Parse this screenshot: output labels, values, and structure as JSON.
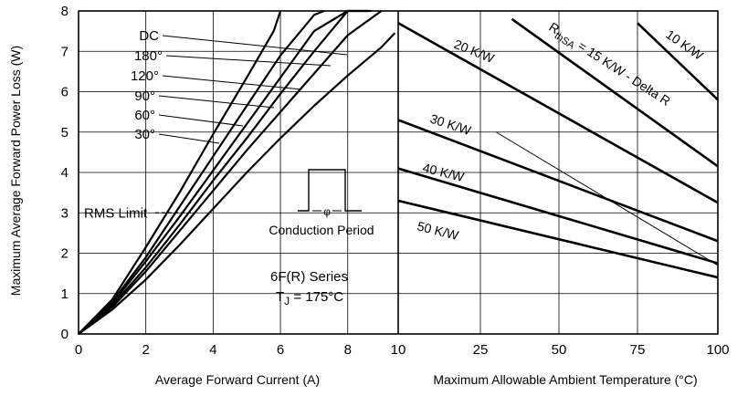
{
  "chart_data": [
    {
      "type": "line",
      "xlabel": "Average Forward Current (A)",
      "ylabel": "Maximum Average Forward Power Loss (W)",
      "xlim": [
        0,
        9.5
      ],
      "ylim": [
        0,
        8
      ],
      "xticks": [
        "0",
        "2",
        "4",
        "6",
        "8"
      ],
      "yticks": [
        "0",
        "1",
        "2",
        "3",
        "4",
        "5",
        "6",
        "7",
        "8"
      ],
      "grid": true,
      "series": [
        {
          "name": "DC",
          "x": [
            0,
            1,
            2,
            3,
            4,
            5,
            6,
            7,
            8,
            9,
            9.4
          ],
          "y": [
            0,
            0.6,
            1.35,
            2.2,
            3.1,
            4.0,
            4.85,
            5.65,
            6.4,
            7.1,
            7.45
          ]
        },
        {
          "name": "180°",
          "x": [
            0,
            1,
            2,
            3,
            4,
            5,
            6,
            7,
            8,
            9
          ],
          "y": [
            0,
            0.66,
            1.55,
            2.55,
            3.55,
            4.55,
            5.5,
            6.45,
            7.4,
            8.0
          ]
        },
        {
          "name": "120°",
          "x": [
            0,
            1,
            2,
            3,
            4,
            5,
            6,
            7,
            8,
            8.7
          ],
          "y": [
            0,
            0.7,
            1.65,
            2.7,
            3.8,
            4.85,
            5.95,
            7.0,
            8.0,
            8.0
          ]
        },
        {
          "name": "90°",
          "x": [
            0,
            1,
            2,
            3,
            4,
            5,
            6,
            7,
            8,
            8.6
          ],
          "y": [
            0,
            0.75,
            1.8,
            2.9,
            4.05,
            5.2,
            6.35,
            7.5,
            8.0,
            8.0
          ]
        },
        {
          "name": "60°",
          "x": [
            0,
            1,
            2,
            3,
            4,
            5,
            6,
            7,
            7.3
          ],
          "y": [
            0,
            0.8,
            1.9,
            3.15,
            4.4,
            5.65,
            6.9,
            7.9,
            8.0
          ]
        },
        {
          "name": "30°",
          "x": [
            0,
            1,
            2,
            3,
            4,
            5,
            5.8,
            6.0
          ],
          "y": [
            0,
            0.85,
            2.15,
            3.5,
            4.95,
            6.35,
            7.5,
            8.0
          ]
        }
      ],
      "rms_limit": {
        "label": "RMS Limit",
        "y": 3.0
      },
      "inset_label": "Conduction Period",
      "inset_symbol": "φ",
      "annotation_series": "6F(R) Series",
      "annotation_tj_sym": "T",
      "annotation_tj_sub": "J",
      "annotation_tj_val": "= 175°C"
    },
    {
      "type": "line",
      "xlabel": "Maximum Allowable Ambient Temperature (°C)",
      "xlim": [
        10,
        100
      ],
      "ylim": [
        0,
        8
      ],
      "xticks": [
        "10",
        "25",
        "50",
        "75",
        "100"
      ],
      "grid": true,
      "series": [
        {
          "name": "10 K/W",
          "x": [
            75,
            100
          ],
          "y": [
            7.7,
            5.8
          ]
        },
        {
          "name": "15 K/W - Delta R",
          "x": [
            35,
            100
          ],
          "y": [
            7.8,
            4.15
          ]
        },
        {
          "name": "20 K/W",
          "x": [
            10,
            100
          ],
          "y": [
            7.7,
            3.25
          ]
        },
        {
          "name": "30 K/W",
          "x": [
            10,
            100
          ],
          "y": [
            5.3,
            2.3
          ]
        },
        {
          "name": "40 K/W",
          "x": [
            10,
            100
          ],
          "y": [
            4.1,
            1.75
          ]
        },
        {
          "name": "50 K/W",
          "x": [
            10,
            100
          ],
          "y": [
            3.3,
            1.4
          ]
        }
      ],
      "rth_label_r": "R",
      "rth_label_sub": "thSA",
      "rth_label_rest": " = 15 K/W - Delta R",
      "thin_line": {
        "x": [
          30,
          100
        ],
        "y": [
          5.0,
          1.7
        ]
      }
    }
  ]
}
